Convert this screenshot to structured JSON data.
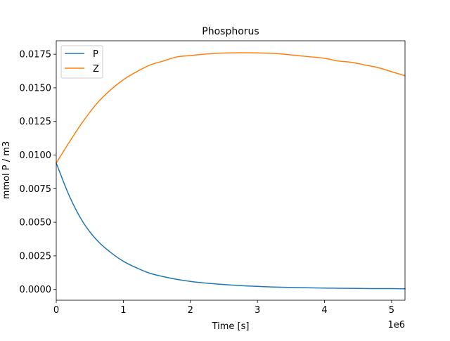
{
  "chart_data": {
    "type": "line",
    "title": "Phosphorus",
    "xlabel": "Time [s]",
    "ylabel": "mmol P / m3",
    "x_offset_label": "1e6",
    "xlim": [
      0,
      5.2
    ],
    "ylim": [
      -0.0008,
      0.0185
    ],
    "xticks": [
      0,
      1,
      2,
      3,
      4,
      5
    ],
    "xtick_labels": [
      "0",
      "1",
      "2",
      "3",
      "4",
      "5"
    ],
    "yticks": [
      0,
      0.0025,
      0.005,
      0.0075,
      0.01,
      0.0125,
      0.015,
      0.0175
    ],
    "ytick_labels": [
      "0.0000",
      "0.0025",
      "0.0050",
      "0.0075",
      "0.0100",
      "0.0125",
      "0.0150",
      "0.0175"
    ],
    "grid": false,
    "legend": "top-left",
    "x": [
      0,
      0.2,
      0.4,
      0.6,
      0.8,
      1.0,
      1.2,
      1.4,
      1.6,
      1.8,
      2.0,
      2.2,
      2.4,
      2.6,
      2.8,
      3.0,
      3.2,
      3.4,
      3.6,
      3.8,
      4.0,
      4.2,
      4.4,
      4.6,
      4.8,
      5.0,
      5.2
    ],
    "series": [
      {
        "name": "P",
        "color": "#1f77b4",
        "values": [
          0.0094,
          0.0069,
          0.005,
          0.0037,
          0.0028,
          0.0021,
          0.0016,
          0.0012,
          0.00095,
          0.00075,
          0.0006,
          0.00049,
          0.0004,
          0.00033,
          0.00027,
          0.00023,
          0.00019,
          0.00016,
          0.00014,
          0.00012,
          0.0001,
          9e-05,
          8e-05,
          7e-05,
          6e-05,
          6e-05,
          5e-05
        ]
      },
      {
        "name": "Z",
        "color": "#ff7f0e",
        "values": [
          0.0094,
          0.011,
          0.0125,
          0.0138,
          0.0148,
          0.0156,
          0.0162,
          0.0167,
          0.017,
          0.0173,
          0.0174,
          0.0175,
          0.01757,
          0.0176,
          0.01761,
          0.0176,
          0.01757,
          0.0175,
          0.0174,
          0.0173,
          0.0172,
          0.017,
          0.0169,
          0.0167,
          0.0165,
          0.0162,
          0.0159
        ]
      }
    ]
  }
}
